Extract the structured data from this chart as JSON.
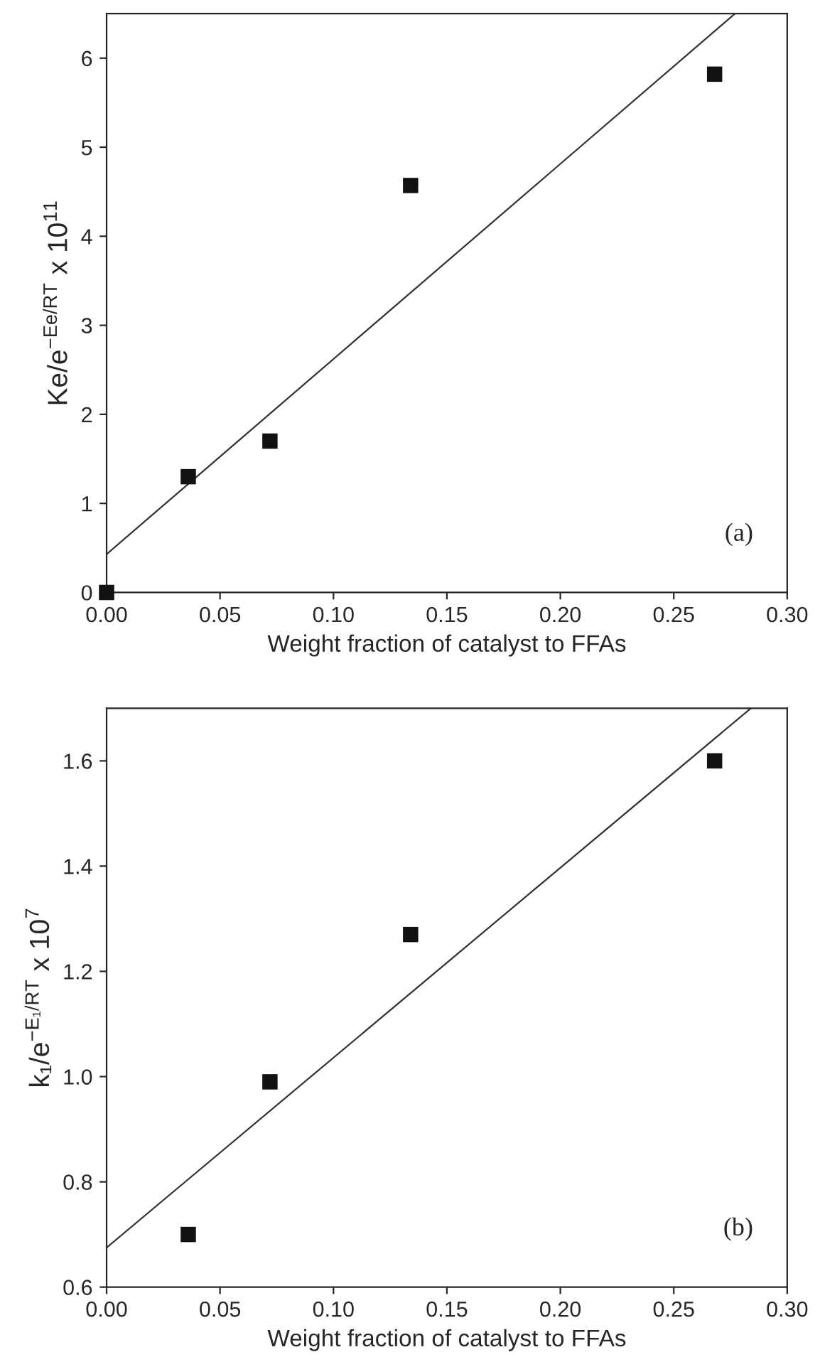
{
  "chart_data": [
    {
      "type": "scatter",
      "xlabel": "Weight fraction of catalyst to FFAs",
      "ylabel": "Ke/e$^{−Ee/RT}$ x 10$^{11}$",
      "annotations": [
        "(a)"
      ],
      "grid": false,
      "xlim": [
        0,
        0.3
      ],
      "xticks": [
        {
          "value": 0,
          "label": "0.00"
        },
        0.05,
        {
          "value": 0.1,
          "label": "0.10"
        },
        0.15,
        {
          "value": 0.2,
          "label": "0.20"
        },
        0.25,
        {
          "value": 0.3,
          "label": "0.30"
        }
      ],
      "ylim": [
        0,
        6.5
      ],
      "yticks": [
        0,
        1,
        2,
        3,
        4,
        5,
        6
      ],
      "series": [
        {
          "color": "#111111",
          "marker": "square",
          "x": [
            0,
            0.036,
            0.072,
            0.134,
            0.268
          ],
          "values": [
            0,
            1.3,
            1.7,
            4.57,
            5.82
          ]
        },
        {
          "type": "line",
          "color": "#333333",
          "x": [
            0,
            0.277
          ],
          "values": [
            0.43,
            6.5
          ]
        }
      ]
    },
    {
      "type": "scatter",
      "xlabel": "Weight fraction of catalyst to FFAs",
      "ylabel": "k₁/e$^{−E₁/RT}$ x 10$^{7}$",
      "annotations": [
        "(b)"
      ],
      "grid": false,
      "xlim": [
        0,
        0.3
      ],
      "xticks": [
        {
          "value": 0,
          "label": "0.00"
        },
        0.05,
        {
          "value": 0.1,
          "label": "0.10"
        },
        0.15,
        {
          "value": 0.2,
          "label": "0.20"
        },
        0.25,
        {
          "value": 0.3,
          "label": "0.30"
        }
      ],
      "ylim": [
        0.6,
        1.7
      ],
      "yticks": [
        0.6,
        0.8,
        {
          "value": 1.0,
          "label": "1.0"
        },
        1.2,
        1.4,
        1.6
      ],
      "series": [
        {
          "color": "#111111",
          "marker": "square",
          "x": [
            0.036,
            0.072,
            0.134,
            0.268
          ],
          "values": [
            0.7,
            0.99,
            1.27,
            1.6
          ]
        },
        {
          "type": "line",
          "color": "#333333",
          "x": [
            0,
            0.284
          ],
          "values": [
            0.675,
            1.7
          ]
        }
      ]
    }
  ]
}
